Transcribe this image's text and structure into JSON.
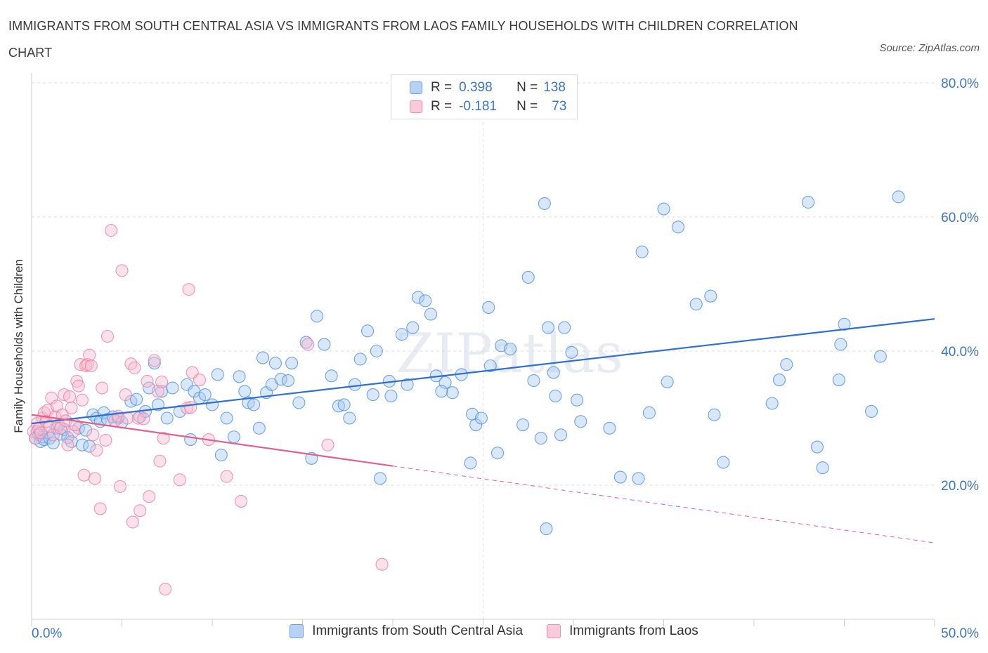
{
  "chart_data": {
    "type": "scatter",
    "title": "IMMIGRANTS FROM SOUTH CENTRAL ASIA VS IMMIGRANTS FROM LAOS FAMILY HOUSEHOLDS WITH CHILDREN CORRELATION CHART",
    "source": "Source: ZipAtlas.com",
    "watermark": "ZIPatlas",
    "xlabel": "",
    "ylabel": "Family Households with Children",
    "xlim": [
      0,
      50
    ],
    "ylim": [
      0,
      80
    ],
    "x_tick_labels": [
      "0.0%",
      "50.0%"
    ],
    "y_tick_values": [
      20,
      40,
      60,
      80
    ],
    "y_tick_labels": [
      "20.0%",
      "40.0%",
      "60.0%",
      "80.0%"
    ],
    "grid": true,
    "legend_position": "top-center",
    "colors": {
      "blue": "#4f8fe0",
      "blue_fill": "#a9c9f3",
      "blue_line": "#2f6fcf",
      "pink": "#ee7fa1",
      "pink_fill": "#f6bcd0",
      "pink_line": "#e0628b",
      "axis_text": "#3c74c6"
    },
    "stats": [
      {
        "series": "Immigrants from South Central Asia",
        "r_label": "R =",
        "r": "0.398",
        "n_label": "N =",
        "n": "138"
      },
      {
        "series": "Immigrants from Laos",
        "r_label": "R =",
        "r": "-0.181",
        "n_label": "N =",
        "n": "73"
      }
    ],
    "series": [
      {
        "name": "Immigrants from South Central Asia",
        "color": "#4f8fe0",
        "trend": {
          "x0": 0,
          "y0": 29.2,
          "x1": 50,
          "y1": 44.8,
          "dashed_from": null
        },
        "points": [
          [
            0.2,
            27.0
          ],
          [
            0.3,
            28.0
          ],
          [
            0.4,
            27.5
          ],
          [
            0.5,
            26.5
          ],
          [
            0.6,
            27.2
          ],
          [
            0.7,
            26.8
          ],
          [
            0.9,
            27.8
          ],
          [
            1.0,
            27.0
          ],
          [
            1.2,
            26.3
          ],
          [
            1.4,
            28.5
          ],
          [
            1.6,
            27.6
          ],
          [
            1.8,
            28.3
          ],
          [
            2.0,
            27.1
          ],
          [
            2.2,
            26.5
          ],
          [
            2.6,
            28.5
          ],
          [
            2.8,
            26.0
          ],
          [
            3.0,
            28.2
          ],
          [
            3.2,
            25.8
          ],
          [
            3.4,
            30.5
          ],
          [
            3.6,
            30.0
          ],
          [
            3.8,
            29.5
          ],
          [
            4.0,
            30.8
          ],
          [
            4.2,
            29.8
          ],
          [
            4.5,
            30.2
          ],
          [
            4.8,
            30.0
          ],
          [
            5.0,
            29.4
          ],
          [
            5.5,
            32.5
          ],
          [
            5.8,
            32.8
          ],
          [
            6.0,
            30.2
          ],
          [
            6.3,
            31.0
          ],
          [
            6.5,
            34.5
          ],
          [
            6.8,
            38.2
          ],
          [
            7.0,
            32.0
          ],
          [
            7.2,
            34.0
          ],
          [
            7.5,
            30.0
          ],
          [
            7.8,
            34.5
          ],
          [
            8.2,
            31.0
          ],
          [
            8.6,
            35.0
          ],
          [
            8.8,
            26.8
          ],
          [
            9.0,
            34.0
          ],
          [
            9.3,
            33.0
          ],
          [
            9.6,
            33.5
          ],
          [
            10.0,
            32.0
          ],
          [
            10.3,
            36.5
          ],
          [
            10.5,
            24.5
          ],
          [
            10.8,
            30.0
          ],
          [
            11.2,
            27.2
          ],
          [
            11.5,
            36.2
          ],
          [
            11.8,
            34.0
          ],
          [
            12.0,
            32.3
          ],
          [
            12.3,
            32.0
          ],
          [
            12.6,
            28.5
          ],
          [
            12.8,
            39.0
          ],
          [
            13.0,
            33.8
          ],
          [
            13.3,
            35.0
          ],
          [
            13.5,
            38.2
          ],
          [
            13.8,
            35.8
          ],
          [
            14.2,
            35.6
          ],
          [
            14.4,
            38.2
          ],
          [
            14.8,
            32.3
          ],
          [
            15.2,
            41.3
          ],
          [
            15.5,
            24.0
          ],
          [
            15.8,
            45.2
          ],
          [
            16.2,
            41.0
          ],
          [
            16.6,
            36.3
          ],
          [
            17.0,
            31.8
          ],
          [
            17.3,
            32.0
          ],
          [
            17.6,
            30.0
          ],
          [
            17.9,
            35.0
          ],
          [
            18.2,
            38.8
          ],
          [
            18.6,
            43.0
          ],
          [
            18.9,
            33.5
          ],
          [
            19.1,
            40.0
          ],
          [
            19.3,
            21.0
          ],
          [
            19.8,
            35.5
          ],
          [
            19.9,
            33.3
          ],
          [
            20.5,
            42.5
          ],
          [
            20.8,
            35.0
          ],
          [
            21.1,
            43.5
          ],
          [
            21.4,
            48.0
          ],
          [
            21.8,
            47.5
          ],
          [
            22.1,
            45.5
          ],
          [
            22.4,
            36.3
          ],
          [
            22.9,
            35.3
          ],
          [
            23.3,
            33.8
          ],
          [
            23.8,
            36.5
          ],
          [
            24.3,
            23.3
          ],
          [
            24.4,
            30.6
          ],
          [
            24.6,
            29.0
          ],
          [
            24.9,
            30.0
          ],
          [
            25.3,
            46.5
          ],
          [
            25.4,
            37.8
          ],
          [
            25.8,
            24.8
          ],
          [
            26.0,
            40.8
          ],
          [
            26.5,
            40.3
          ],
          [
            27.2,
            29.0
          ],
          [
            27.5,
            51.0
          ],
          [
            27.8,
            35.6
          ],
          [
            28.2,
            27.0
          ],
          [
            28.4,
            62.0
          ],
          [
            28.6,
            43.5
          ],
          [
            28.9,
            36.8
          ],
          [
            29.0,
            33.3
          ],
          [
            29.3,
            27.5
          ],
          [
            29.5,
            43.5
          ],
          [
            29.9,
            39.8
          ],
          [
            30.2,
            32.7
          ],
          [
            30.4,
            29.5
          ],
          [
            32.0,
            28.5
          ],
          [
            32.6,
            21.2
          ],
          [
            33.6,
            21.0
          ],
          [
            33.8,
            54.8
          ],
          [
            34.2,
            30.8
          ],
          [
            35.0,
            61.2
          ],
          [
            35.2,
            35.4
          ],
          [
            35.8,
            58.5
          ],
          [
            36.8,
            47.0
          ],
          [
            37.6,
            48.2
          ],
          [
            37.8,
            30.5
          ],
          [
            38.3,
            23.4
          ],
          [
            41.0,
            32.2
          ],
          [
            41.4,
            35.7
          ],
          [
            41.8,
            38.0
          ],
          [
            43.0,
            62.2
          ],
          [
            43.5,
            25.7
          ],
          [
            43.8,
            22.6
          ],
          [
            44.7,
            35.7
          ],
          [
            44.8,
            41.0
          ],
          [
            45.0,
            44.0
          ],
          [
            46.5,
            31.0
          ],
          [
            47.0,
            39.2
          ],
          [
            48.0,
            63.0
          ],
          [
            28.5,
            13.5
          ],
          [
            22.7,
            34.0
          ]
        ]
      },
      {
        "name": "Immigrants from Laos",
        "color": "#ee7fa1",
        "trend": {
          "x0": 0,
          "y0": 30.5,
          "x1": 50,
          "y1": 11.4,
          "dashed_from": 20
        },
        "points": [
          [
            0.1,
            28.0
          ],
          [
            0.2,
            27.0
          ],
          [
            0.3,
            29.2
          ],
          [
            0.4,
            28.4
          ],
          [
            0.5,
            27.8
          ],
          [
            0.6,
            30.0
          ],
          [
            0.7,
            30.8
          ],
          [
            0.8,
            29.5
          ],
          [
            0.9,
            31.2
          ],
          [
            1.0,
            28.8
          ],
          [
            1.1,
            33.0
          ],
          [
            1.2,
            27.5
          ],
          [
            1.3,
            30.2
          ],
          [
            1.4,
            31.8
          ],
          [
            1.5,
            29.0
          ],
          [
            1.6,
            28.5
          ],
          [
            1.7,
            30.5
          ],
          [
            1.8,
            33.5
          ],
          [
            1.9,
            29.6
          ],
          [
            2.0,
            26.0
          ],
          [
            2.1,
            33.2
          ],
          [
            2.2,
            31.5
          ],
          [
            2.3,
            28.0
          ],
          [
            2.4,
            29.0
          ],
          [
            2.5,
            35.5
          ],
          [
            2.6,
            34.8
          ],
          [
            2.7,
            38.0
          ],
          [
            2.8,
            32.7
          ],
          [
            2.9,
            21.5
          ],
          [
            3.0,
            37.8
          ],
          [
            3.1,
            38.0
          ],
          [
            3.2,
            39.4
          ],
          [
            3.3,
            37.8
          ],
          [
            3.4,
            27.5
          ],
          [
            3.5,
            21.0
          ],
          [
            3.6,
            25.2
          ],
          [
            3.8,
            16.5
          ],
          [
            3.9,
            34.5
          ],
          [
            4.1,
            26.7
          ],
          [
            4.2,
            42.2
          ],
          [
            4.4,
            58.0
          ],
          [
            4.6,
            29.6
          ],
          [
            4.8,
            30.3
          ],
          [
            4.9,
            19.8
          ],
          [
            5.0,
            52.0
          ],
          [
            5.2,
            33.5
          ],
          [
            5.3,
            30.0
          ],
          [
            5.5,
            38.1
          ],
          [
            5.6,
            14.5
          ],
          [
            5.7,
            37.5
          ],
          [
            5.9,
            30.0
          ],
          [
            6.0,
            16.2
          ],
          [
            6.2,
            29.9
          ],
          [
            6.4,
            35.5
          ],
          [
            6.5,
            18.3
          ],
          [
            6.8,
            38.6
          ],
          [
            7.0,
            34.0
          ],
          [
            7.1,
            23.6
          ],
          [
            7.2,
            35.4
          ],
          [
            7.3,
            27.0
          ],
          [
            7.4,
            4.5
          ],
          [
            8.2,
            20.8
          ],
          [
            8.6,
            31.5
          ],
          [
            8.7,
            49.2
          ],
          [
            8.8,
            31.6
          ],
          [
            8.9,
            36.8
          ],
          [
            9.3,
            35.7
          ],
          [
            9.8,
            26.8
          ],
          [
            10.8,
            21.3
          ],
          [
            11.6,
            17.6
          ],
          [
            15.3,
            41.0
          ],
          [
            16.4,
            26.0
          ],
          [
            19.4,
            8.2
          ]
        ]
      }
    ]
  }
}
